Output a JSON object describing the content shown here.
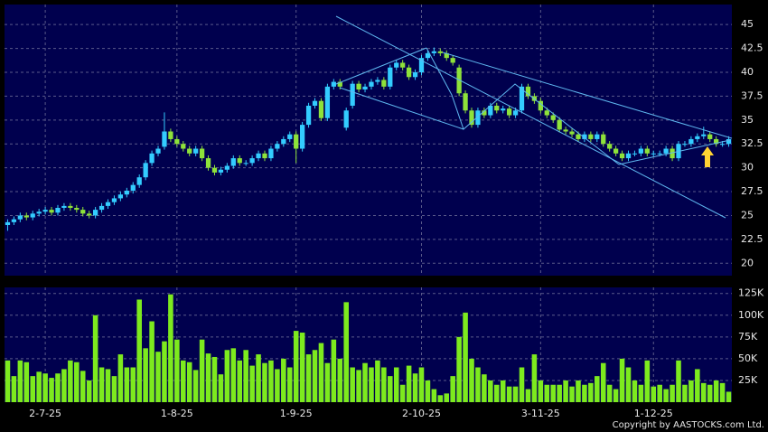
{
  "chart_data": {
    "type": "candlestick",
    "categories": [
      null,
      null,
      null,
      null,
      null,
      null,
      "2-7-25",
      null,
      null,
      null,
      null,
      null,
      null,
      null,
      null,
      null,
      null,
      null,
      null,
      null,
      null,
      null,
      null,
      null,
      null,
      null,
      null,
      "1-8-25",
      null,
      null,
      null,
      null,
      null,
      null,
      null,
      null,
      null,
      null,
      null,
      null,
      null,
      null,
      null,
      null,
      null,
      null,
      "1-9-25",
      null,
      null,
      null,
      null,
      null,
      null,
      null,
      null,
      null,
      null,
      null,
      null,
      null,
      null,
      null,
      null,
      null,
      null,
      null,
      "2-10-25",
      null,
      null,
      null,
      null,
      null,
      null,
      null,
      null,
      null,
      null,
      null,
      null,
      null,
      null,
      null,
      null,
      null,
      null,
      "3-11-25",
      null,
      null,
      null,
      null,
      null,
      null,
      null,
      null,
      null,
      null,
      null,
      null,
      null,
      null,
      null,
      null,
      null,
      "1-12-25",
      null,
      null,
      null,
      null,
      null,
      null,
      null,
      null,
      null,
      null,
      null,
      null
    ],
    "open": [
      24.0,
      24.3,
      24.6,
      25.0,
      24.8,
      25.2,
      25.4,
      25.6,
      25.3,
      25.8,
      26.0,
      25.8,
      25.6,
      25.2,
      25.0,
      25.6,
      26.0,
      26.4,
      26.8,
      27.2,
      27.6,
      28.2,
      29.0,
      30.5,
      31.5,
      32.2,
      33.8,
      33.0,
      32.5,
      32.0,
      31.5,
      32.0,
      31.0,
      30.0,
      29.5,
      29.8,
      30.2,
      31.0,
      30.5,
      30.5,
      31.0,
      31.5,
      31.0,
      32.0,
      32.5,
      33.0,
      33.5,
      32.0,
      34.5,
      36.5,
      37.0,
      35.2,
      38.5,
      39.0,
      34.2,
      36.5,
      38.8,
      38.2,
      38.5,
      39.0,
      39.2,
      38.5,
      40.5,
      41.0,
      40.5,
      39.5,
      40.0,
      41.5,
      42.0,
      42.2,
      42.0,
      41.5,
      40.5,
      37.8,
      36.0,
      34.5,
      36.0,
      35.5,
      36.5,
      36.0,
      36.2,
      35.5,
      36.0,
      38.5,
      37.5,
      37.0,
      36.0,
      35.5,
      35.0,
      34.0,
      33.8,
      33.5,
      33.0,
      33.5,
      33.0,
      33.5,
      32.5,
      32.0,
      31.5,
      31.0,
      31.5,
      31.5,
      32.0,
      31.5,
      31.5,
      31.5,
      32.0,
      31.0,
      32.5,
      32.5,
      33.0,
      33.3,
      33.5,
      33.0,
      32.5,
      32.5
    ],
    "high": [
      24.6,
      24.9,
      25.3,
      25.3,
      25.5,
      25.7,
      25.9,
      25.9,
      26.1,
      26.3,
      26.3,
      26.1,
      25.9,
      25.5,
      25.9,
      26.3,
      26.7,
      27.1,
      27.5,
      27.9,
      28.5,
      29.3,
      30.8,
      31.8,
      32.3,
      35.8,
      34.1,
      33.3,
      32.8,
      32.3,
      32.3,
      32.3,
      31.3,
      30.3,
      30.1,
      30.5,
      31.3,
      31.3,
      30.8,
      31.3,
      31.8,
      31.8,
      32.3,
      32.8,
      33.3,
      33.8,
      33.8,
      34.8,
      36.8,
      37.3,
      37.3,
      38.8,
      39.3,
      39.3,
      36.3,
      39.1,
      39.1,
      38.8,
      39.3,
      39.5,
      39.5,
      40.8,
      41.3,
      41.3,
      40.8,
      40.3,
      41.8,
      42.3,
      42.6,
      42.5,
      42.3,
      41.8,
      40.8,
      38.1,
      36.3,
      36.3,
      36.3,
      36.8,
      36.8,
      36.5,
      36.5,
      36.3,
      38.8,
      38.8,
      37.8,
      37.3,
      36.3,
      35.8,
      35.3,
      34.3,
      34.1,
      33.8,
      33.8,
      33.8,
      33.8,
      33.8,
      32.8,
      32.3,
      31.8,
      31.8,
      31.8,
      32.3,
      32.3,
      31.8,
      31.8,
      32.3,
      32.3,
      32.8,
      32.8,
      33.3,
      33.6,
      34.3,
      33.8,
      33.3,
      32.8,
      33.3
    ],
    "low": [
      23.4,
      24.0,
      24.3,
      24.5,
      24.5,
      24.9,
      25.1,
      25.0,
      25.0,
      25.5,
      25.5,
      25.3,
      24.9,
      24.7,
      24.7,
      25.3,
      25.7,
      26.1,
      26.5,
      26.9,
      27.3,
      27.9,
      28.7,
      30.2,
      31.2,
      31.9,
      32.7,
      32.2,
      31.7,
      31.2,
      31.2,
      30.7,
      29.7,
      29.2,
      29.2,
      29.5,
      29.9,
      30.2,
      30.2,
      30.2,
      30.7,
      30.7,
      30.7,
      31.7,
      32.2,
      32.7,
      30.5,
      31.7,
      34.2,
      36.2,
      34.9,
      34.9,
      38.2,
      38.2,
      33.9,
      36.2,
      37.9,
      37.9,
      38.2,
      38.7,
      38.2,
      38.2,
      40.2,
      40.2,
      39.2,
      39.2,
      39.7,
      41.2,
      41.7,
      41.7,
      41.2,
      40.7,
      37.5,
      35.7,
      34.2,
      34.2,
      35.2,
      35.2,
      35.7,
      35.7,
      35.2,
      35.2,
      35.7,
      37.2,
      36.7,
      35.7,
      35.2,
      34.7,
      33.7,
      33.5,
      33.2,
      32.7,
      32.7,
      32.7,
      32.7,
      32.2,
      31.7,
      31.2,
      30.7,
      30.7,
      31.2,
      31.2,
      31.2,
      31.2,
      31.2,
      31.2,
      30.7,
      30.7,
      32.2,
      32.2,
      32.7,
      33.0,
      32.7,
      32.2,
      32.2,
      32.2
    ],
    "close": [
      24.3,
      24.6,
      25.0,
      24.8,
      25.2,
      25.4,
      25.6,
      25.3,
      25.8,
      26.0,
      25.8,
      25.6,
      25.2,
      25.0,
      25.6,
      26.0,
      26.4,
      26.8,
      27.2,
      27.6,
      28.2,
      29.0,
      30.5,
      31.5,
      32.0,
      33.8,
      33.0,
      32.5,
      32.0,
      31.5,
      32.0,
      31.0,
      30.0,
      29.5,
      29.8,
      30.2,
      31.0,
      30.5,
      30.5,
      31.0,
      31.5,
      31.0,
      32.0,
      32.5,
      33.0,
      33.5,
      32.0,
      34.5,
      36.5,
      37.0,
      35.2,
      38.5,
      39.0,
      38.5,
      36.0,
      38.8,
      38.2,
      38.5,
      39.0,
      39.2,
      38.5,
      40.5,
      41.0,
      40.5,
      39.5,
      40.0,
      41.5,
      42.0,
      42.2,
      42.0,
      41.5,
      41.0,
      37.8,
      36.0,
      34.5,
      36.0,
      35.5,
      36.5,
      36.0,
      36.2,
      35.5,
      36.0,
      38.5,
      37.5,
      37.0,
      36.0,
      35.5,
      35.0,
      34.0,
      33.8,
      33.5,
      33.0,
      33.5,
      33.0,
      33.5,
      32.5,
      32.0,
      31.5,
      31.0,
      31.5,
      31.5,
      32.0,
      31.5,
      31.5,
      31.5,
      32.0,
      31.0,
      32.5,
      32.5,
      33.0,
      33.3,
      33.5,
      33.0,
      32.5,
      32.5,
      33.0
    ],
    "volume": [
      48000,
      30000,
      48000,
      46000,
      30000,
      35000,
      33000,
      28000,
      33000,
      38000,
      48000,
      46000,
      36000,
      25000,
      100000,
      40000,
      38000,
      30000,
      55000,
      40000,
      40000,
      118000,
      62000,
      93000,
      58000,
      70000,
      124000,
      72000,
      48000,
      46000,
      37000,
      72000,
      56000,
      52000,
      32000,
      60000,
      62000,
      48000,
      60000,
      42000,
      55000,
      45000,
      48000,
      38000,
      50000,
      40000,
      82000,
      80000,
      55000,
      60000,
      68000,
      45000,
      72000,
      50000,
      115000,
      40000,
      37000,
      45000,
      40000,
      48000,
      40000,
      30000,
      40000,
      20000,
      42000,
      33000,
      40000,
      25000,
      15000,
      8000,
      10000,
      30000,
      75000,
      103000,
      50000,
      40000,
      32000,
      25000,
      20000,
      25000,
      18000,
      18000,
      40000,
      15000,
      55000,
      25000,
      20000,
      20000,
      20000,
      25000,
      18000,
      25000,
      20000,
      22000,
      30000,
      45000,
      20000,
      15000,
      50000,
      40000,
      25000,
      20000,
      48000,
      18000,
      20000,
      15000,
      20000,
      48000,
      20000,
      25000,
      38000,
      22000,
      20000,
      25000,
      22000,
      12000
    ],
    "up_color": "#33ccff",
    "down_color": "#8ee23a",
    "volume_color": "#7dea1e",
    "ylim": [
      18.7,
      47.1
    ],
    "yticks": [
      20,
      22.5,
      25,
      27.5,
      30,
      32.5,
      35,
      37.5,
      40,
      42.5,
      45
    ],
    "volume_ylim": [
      0,
      132000
    ],
    "volume_ticks": [
      {
        "value": 25000,
        "label": "25K"
      },
      {
        "value": 50000,
        "label": "50K"
      },
      {
        "value": 75000,
        "label": "75K"
      },
      {
        "value": 100000,
        "label": "100K"
      },
      {
        "value": 125000,
        "label": "125K"
      }
    ],
    "grid": true,
    "copyright": "Copyright by AASTOCKS.com Ltd."
  }
}
